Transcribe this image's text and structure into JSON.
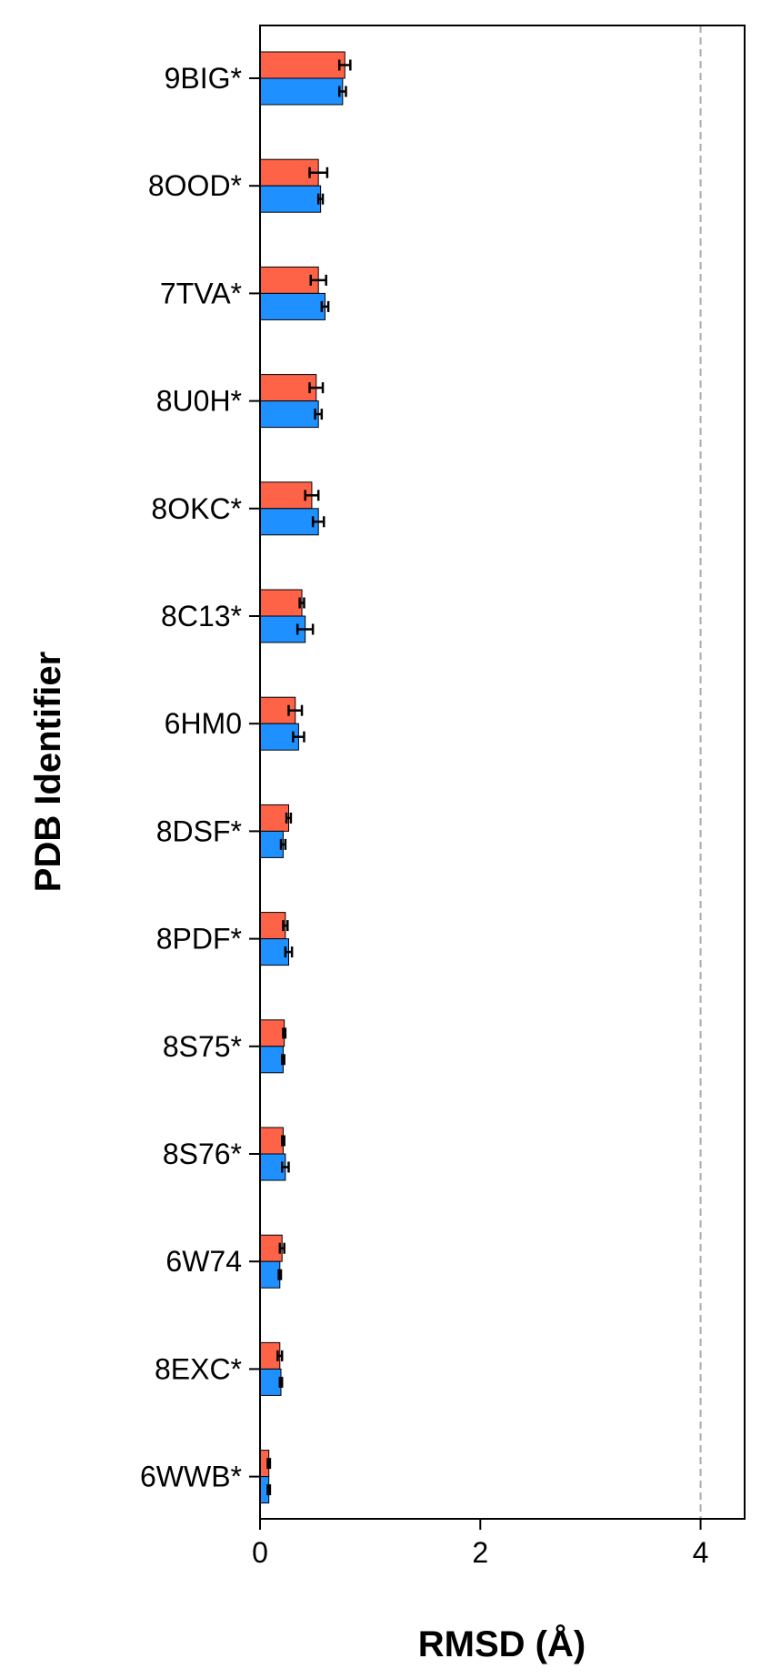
{
  "chart_data": {
    "type": "bar",
    "orientation": "horizontal",
    "xlabel": "RMSD (Å)",
    "ylabel": "PDB Identifier",
    "xlim": [
      0,
      4.4
    ],
    "xticks": [
      "0",
      "2",
      "4"
    ],
    "reference_line": {
      "x": 4,
      "style": "dashed",
      "color": "#aaaaaa"
    },
    "categories": [
      "9BIG*",
      "8OOD*",
      "7TVA*",
      "8U0H*",
      "8OKC*",
      "8C13*",
      "6HM0",
      "8DSF*",
      "8PDF*",
      "8S75*",
      "8S76*",
      "6W74",
      "8EXC*",
      "6WWB*"
    ],
    "series": [
      {
        "color": "#ff6347",
        "values": [
          0.77,
          0.53,
          0.53,
          0.51,
          0.47,
          0.38,
          0.32,
          0.26,
          0.23,
          0.22,
          0.21,
          0.2,
          0.18,
          0.08
        ],
        "errors": [
          0.05,
          0.08,
          0.07,
          0.06,
          0.06,
          0.02,
          0.06,
          0.02,
          0.02,
          0.01,
          0.01,
          0.02,
          0.02,
          0.01
        ]
      },
      {
        "color": "#1e90ff",
        "values": [
          0.75,
          0.55,
          0.59,
          0.53,
          0.53,
          0.41,
          0.35,
          0.21,
          0.26,
          0.21,
          0.23,
          0.18,
          0.19,
          0.08
        ],
        "errors": [
          0.03,
          0.02,
          0.03,
          0.03,
          0.05,
          0.07,
          0.05,
          0.02,
          0.03,
          0.01,
          0.03,
          0.01,
          0.01,
          0.01
        ]
      }
    ]
  }
}
